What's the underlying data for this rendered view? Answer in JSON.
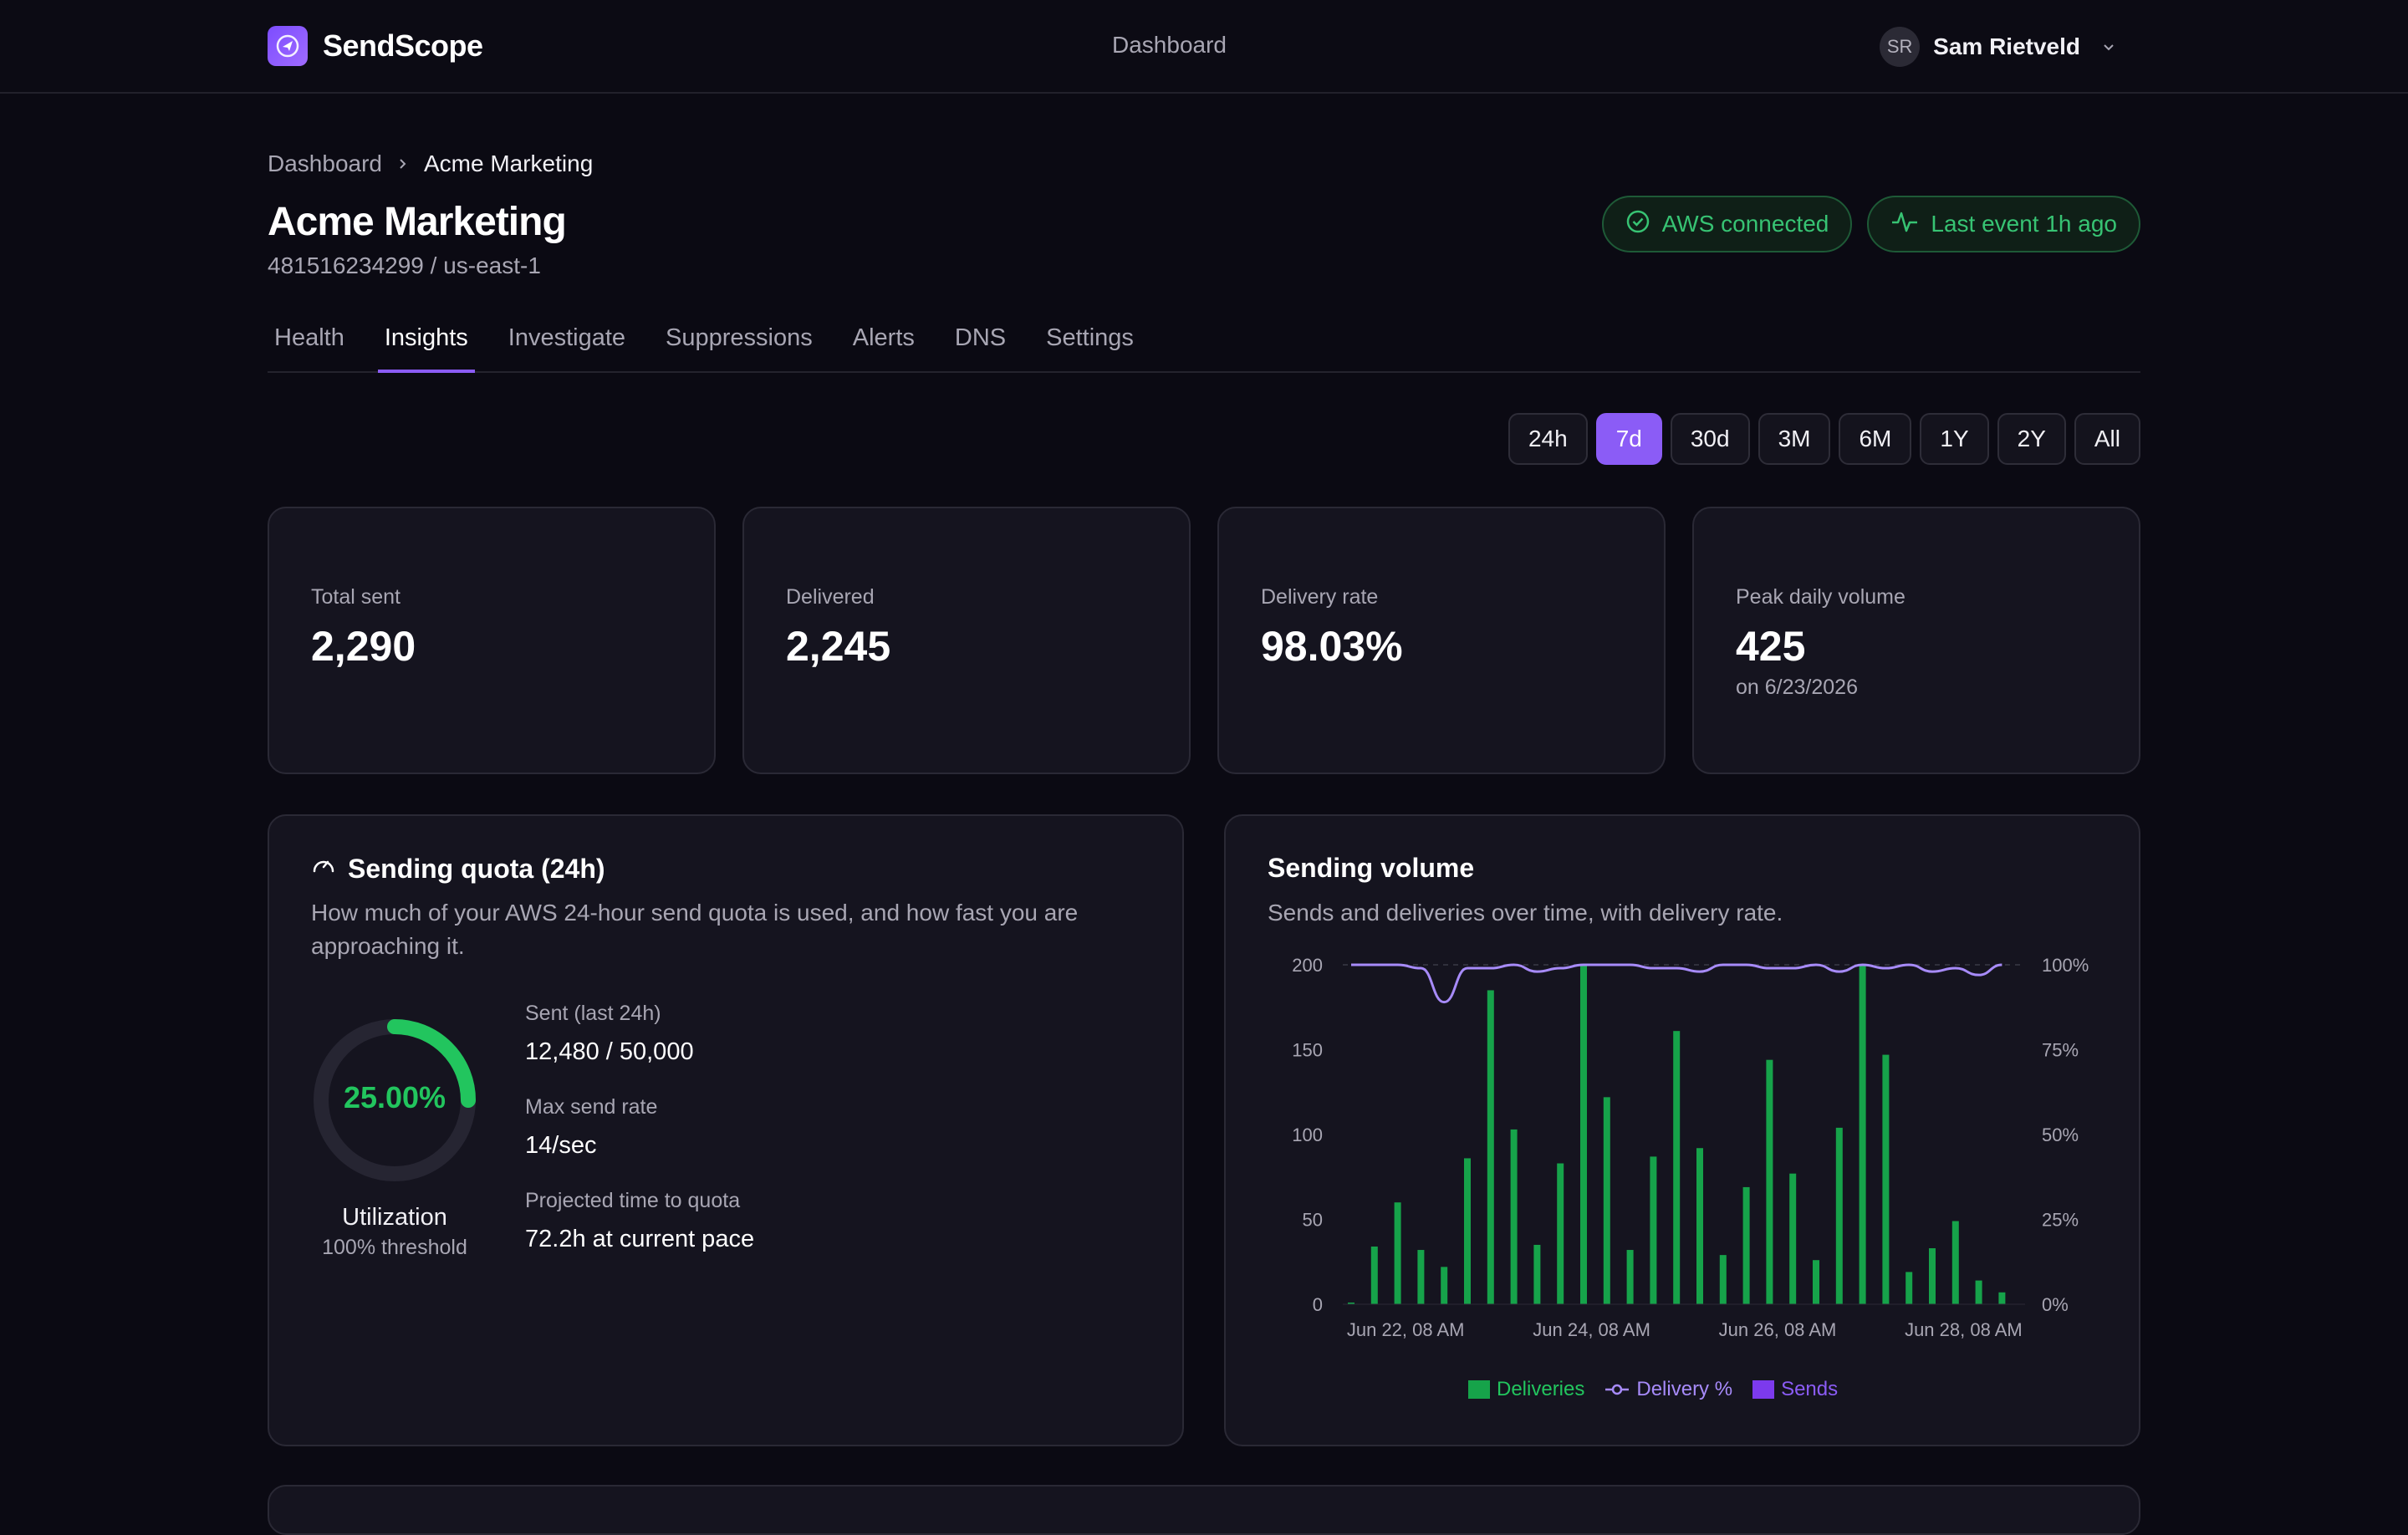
{
  "header": {
    "brand": "SendScope",
    "nav_label": "Dashboard",
    "user": {
      "initials": "SR",
      "name": "Sam Rietveld"
    }
  },
  "breadcrumb": {
    "parent": "Dashboard",
    "current": "Acme Marketing"
  },
  "page": {
    "title": "Acme Marketing",
    "subtitle": "481516234299 / us-east-1",
    "status": [
      {
        "label": "AWS connected",
        "icon": "check-circle-icon"
      },
      {
        "label": "Last event 1h ago",
        "icon": "activity-icon"
      }
    ]
  },
  "tabs": [
    "Health",
    "Insights",
    "Investigate",
    "Suppressions",
    "Alerts",
    "DNS",
    "Settings"
  ],
  "active_tab": "Insights",
  "ranges": [
    "24h",
    "7d",
    "30d",
    "3M",
    "6M",
    "1Y",
    "2Y",
    "All"
  ],
  "active_range": "7d",
  "stats": [
    {
      "label": "Total sent",
      "value": "2,290",
      "note": ""
    },
    {
      "label": "Delivered",
      "value": "2,245",
      "note": ""
    },
    {
      "label": "Delivery rate",
      "value": "98.03%",
      "note": ""
    },
    {
      "label": "Peak daily volume",
      "value": "425",
      "note": "on 6/23/2026"
    }
  ],
  "quota": {
    "title": "Sending quota (24h)",
    "description": "How much of your AWS 24-hour send quota is used, and how fast you are approaching it.",
    "utilization_value": "25.00%",
    "utilization_fraction": 0.25,
    "utilization_label": "Utilization",
    "threshold_label": "100% threshold",
    "metrics": [
      {
        "label": "Sent (last 24h)",
        "value": "12,480 / 50,000"
      },
      {
        "label": "Max send rate",
        "value": "14/sec"
      },
      {
        "label": "Projected time to quota",
        "value": "72.2h at current pace"
      }
    ],
    "colors": {
      "track": "#262532",
      "fill": "#22c55e"
    }
  },
  "volume": {
    "title": "Sending volume",
    "description": "Sends and deliveries over time, with delivery rate."
  },
  "chart_data": {
    "type": "bar",
    "title": "Sending volume",
    "x_tick_labels": [
      "Jun 22, 08 AM",
      "Jun 24, 08 AM",
      "Jun 26, 08 AM",
      "Jun 28, 08 AM"
    ],
    "ylim_left": [
      0,
      200
    ],
    "yticks_left": [
      "0",
      "50",
      "100",
      "150",
      "200"
    ],
    "ylim_right": [
      0,
      100
    ],
    "yticks_right": [
      "0%",
      "25%",
      "50%",
      "75%",
      "100%"
    ],
    "legend": [
      "Deliveries",
      "Delivery %",
      "Sends"
    ],
    "legend_placement": "bottom",
    "colors": {
      "deliveries": "#16a34a",
      "delivery_pct": "#a78bfa",
      "sends": "#7c3aed"
    },
    "series": [
      {
        "name": "Deliveries",
        "values": [
          1,
          34,
          60,
          32,
          22,
          86,
          185,
          103,
          35,
          83,
          200,
          122,
          32,
          87,
          161,
          92,
          29,
          69,
          144,
          77,
          26,
          104,
          200,
          147,
          19,
          33,
          49,
          14,
          7
        ]
      },
      {
        "name": "Delivery %",
        "values": [
          100,
          100,
          100,
          99,
          89,
          99,
          99,
          100,
          98,
          99,
          100,
          100,
          100,
          99,
          99,
          98,
          100,
          100,
          99,
          99,
          100,
          98,
          100,
          99,
          100,
          98,
          99,
          97,
          100
        ]
      }
    ]
  }
}
